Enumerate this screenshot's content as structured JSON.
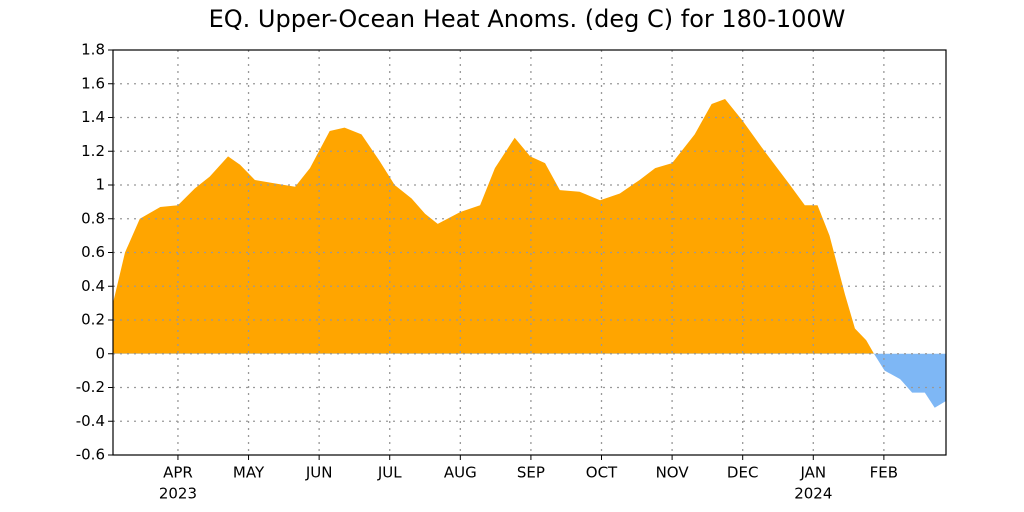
{
  "chart_data": {
    "type": "area",
    "title": "EQ. Upper-Ocean Heat Anoms. (deg C) for 180-100W",
    "x": [
      0.08,
      0.25,
      0.46,
      0.75,
      1.0,
      1.24,
      1.45,
      1.71,
      1.88,
      2.09,
      2.37,
      2.66,
      2.87,
      3.15,
      3.36,
      3.6,
      3.86,
      4.07,
      4.31,
      4.5,
      4.68,
      5.0,
      5.28,
      5.49,
      5.77,
      5.99,
      6.2,
      6.41,
      6.69,
      6.98,
      7.26,
      7.54,
      7.76,
      8.0,
      8.32,
      8.56,
      8.75,
      9.0,
      9.31,
      9.67,
      9.88,
      10.06,
      10.23,
      10.45,
      10.59,
      10.75,
      10.86,
      11.01,
      11.23,
      11.4,
      11.58,
      11.72,
      11.88
    ],
    "values": [
      0.3,
      0.6,
      0.8,
      0.87,
      0.88,
      0.98,
      1.05,
      1.17,
      1.12,
      1.03,
      1.01,
      0.99,
      1.1,
      1.32,
      1.34,
      1.3,
      1.14,
      1.0,
      0.92,
      0.83,
      0.77,
      0.84,
      0.88,
      1.1,
      1.28,
      1.17,
      1.13,
      0.97,
      0.96,
      0.91,
      0.95,
      1.03,
      1.1,
      1.13,
      1.3,
      1.48,
      1.51,
      1.38,
      1.2,
      1.0,
      0.88,
      0.88,
      0.7,
      0.35,
      0.15,
      0.08,
      0,
      -0.1,
      -0.15,
      -0.23,
      -0.23,
      -0.32,
      -0.28
    ],
    "positive_color": "#ffa500",
    "negative_color": "#7eb7f5",
    "xlim": [
      0.08,
      11.88
    ],
    "xticks": [
      {
        "value": 1,
        "label": "APR"
      },
      {
        "value": 2,
        "label": "MAY"
      },
      {
        "value": 3,
        "label": "JUN"
      },
      {
        "value": 4,
        "label": "JUL"
      },
      {
        "value": 5,
        "label": "AUG"
      },
      {
        "value": 6,
        "label": "SEP"
      },
      {
        "value": 7,
        "label": "OCT"
      },
      {
        "value": 8,
        "label": "NOV"
      },
      {
        "value": 9,
        "label": "DEC"
      },
      {
        "value": 10,
        "label": "JAN"
      },
      {
        "value": 11,
        "label": "FEB"
      }
    ],
    "year_labels": [
      {
        "value": 1,
        "label": "2023"
      },
      {
        "value": 10,
        "label": "2024"
      }
    ],
    "ylim": [
      -0.6,
      1.8
    ],
    "yticks": [
      -0.6,
      -0.4,
      -0.2,
      0,
      0.2,
      0.4,
      0.6,
      0.8,
      1,
      1.2,
      1.4,
      1.6,
      1.8
    ],
    "grid": true
  }
}
